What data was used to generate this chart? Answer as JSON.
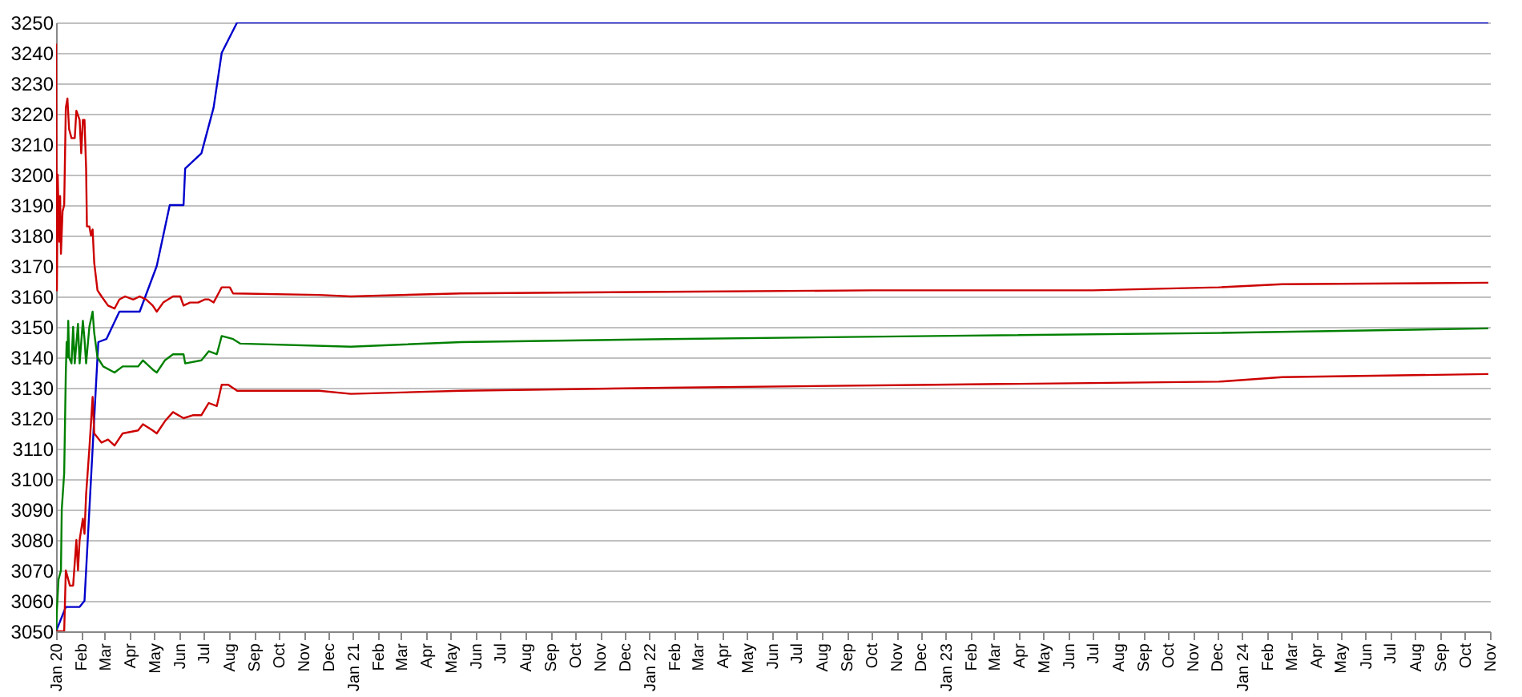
{
  "chart_data": {
    "type": "line",
    "xlim": [
      "2020-01-01",
      "2024-11-01"
    ],
    "xticks": [
      {
        "value": "2020-01",
        "label": "Jan 20"
      },
      {
        "value": "2020-02",
        "label": "Feb"
      },
      {
        "value": "2020-03",
        "label": "Mar"
      },
      {
        "value": "2020-04",
        "label": "Apr"
      },
      {
        "value": "2020-05",
        "label": "May"
      },
      {
        "value": "2020-06",
        "label": "Jun"
      },
      {
        "value": "2020-07",
        "label": "Jul"
      },
      {
        "value": "2020-08",
        "label": "Aug"
      },
      {
        "value": "2020-09",
        "label": "Sep"
      },
      {
        "value": "2020-10",
        "label": "Oct"
      },
      {
        "value": "2020-11",
        "label": "Nov"
      },
      {
        "value": "2020-12",
        "label": "Dec"
      },
      {
        "value": "2021-01",
        "label": "Jan 21"
      },
      {
        "value": "2021-02",
        "label": "Feb"
      },
      {
        "value": "2021-03",
        "label": "Mar"
      },
      {
        "value": "2021-04",
        "label": "Apr"
      },
      {
        "value": "2021-05",
        "label": "May"
      },
      {
        "value": "2021-06",
        "label": "Jun"
      },
      {
        "value": "2021-07",
        "label": "Jul"
      },
      {
        "value": "2021-08",
        "label": "Aug"
      },
      {
        "value": "2021-09",
        "label": "Sep"
      },
      {
        "value": "2021-10",
        "label": "Oct"
      },
      {
        "value": "2021-11",
        "label": "Nov"
      },
      {
        "value": "2021-12",
        "label": "Dec"
      },
      {
        "value": "2022-01",
        "label": "Jan 22"
      },
      {
        "value": "2022-02",
        "label": "Feb"
      },
      {
        "value": "2022-03",
        "label": "Mar"
      },
      {
        "value": "2022-04",
        "label": "Apr"
      },
      {
        "value": "2022-05",
        "label": "May"
      },
      {
        "value": "2022-06",
        "label": "Jun"
      },
      {
        "value": "2022-07",
        "label": "Jul"
      },
      {
        "value": "2022-08",
        "label": "Aug"
      },
      {
        "value": "2022-09",
        "label": "Sep"
      },
      {
        "value": "2022-10",
        "label": "Oct"
      },
      {
        "value": "2022-11",
        "label": "Nov"
      },
      {
        "value": "2022-12",
        "label": "Dec"
      },
      {
        "value": "2023-01",
        "label": "Jan 23"
      },
      {
        "value": "2023-02",
        "label": "Feb"
      },
      {
        "value": "2023-03",
        "label": "Mar"
      },
      {
        "value": "2023-04",
        "label": "Apr"
      },
      {
        "value": "2023-05",
        "label": "May"
      },
      {
        "value": "2023-06",
        "label": "Jun"
      },
      {
        "value": "2023-07",
        "label": "Jul"
      },
      {
        "value": "2023-08",
        "label": "Aug"
      },
      {
        "value": "2023-09",
        "label": "Sep"
      },
      {
        "value": "2023-10",
        "label": "Oct"
      },
      {
        "value": "2023-11",
        "label": "Nov"
      },
      {
        "value": "2023-12",
        "label": "Dec"
      },
      {
        "value": "2024-01",
        "label": "Jan 24"
      },
      {
        "value": "2024-02",
        "label": "Feb"
      },
      {
        "value": "2024-03",
        "label": "Mar"
      },
      {
        "value": "2024-04",
        "label": "Apr"
      },
      {
        "value": "2024-05",
        "label": "May"
      },
      {
        "value": "2024-06",
        "label": "Jun"
      },
      {
        "value": "2024-07",
        "label": "Jul"
      },
      {
        "value": "2024-08",
        "label": "Aug"
      },
      {
        "value": "2024-09",
        "label": "Sep"
      },
      {
        "value": "2024-10",
        "label": "Oct"
      },
      {
        "value": "2024-11",
        "label": "Nov"
      }
    ],
    "ylim": [
      3050,
      3250
    ],
    "yticks": [
      3050,
      3060,
      3070,
      3080,
      3090,
      3100,
      3110,
      3120,
      3130,
      3140,
      3150,
      3160,
      3170,
      3180,
      3190,
      3200,
      3210,
      3220,
      3230,
      3240,
      3250
    ],
    "grid": "y",
    "series": [
      {
        "color": "#0000cc",
        "x": [
          "2020-01-01",
          "2020-01-13",
          "2020-01-30",
          "2020-02-05",
          "2020-02-22",
          "2020-03-03",
          "2020-03-19",
          "2020-04-13",
          "2020-05-04",
          "2020-05-20",
          "2020-06-06",
          "2020-06-08",
          "2020-06-28",
          "2020-07-13",
          "2020-07-23",
          "2020-08-11",
          "2024-10-30"
        ],
        "values": [
          3050,
          3058,
          3058,
          3060,
          3145,
          3146,
          3155,
          3155,
          3170,
          3190,
          3190,
          3202,
          3207,
          3222,
          3240,
          3250,
          3250
        ]
      },
      {
        "color": "#cc0000",
        "x": [
          "2020-01-01",
          "2020-01-02",
          "2020-01-03",
          "2020-01-05",
          "2020-01-06",
          "2020-01-07",
          "2020-01-09",
          "2020-01-11",
          "2020-01-13",
          "2020-01-15",
          "2020-01-17",
          "2020-01-20",
          "2020-01-24",
          "2020-01-26",
          "2020-01-30",
          "2020-02-01",
          "2020-02-03",
          "2020-02-05",
          "2020-02-07",
          "2020-02-08",
          "2020-02-11",
          "2020-02-13",
          "2020-02-15",
          "2020-02-17",
          "2020-02-21",
          "2020-02-26",
          "2020-03-05",
          "2020-03-13",
          "2020-03-19",
          "2020-03-26",
          "2020-04-05",
          "2020-04-13",
          "2020-04-21",
          "2020-04-29",
          "2020-05-04",
          "2020-05-12",
          "2020-05-24",
          "2020-06-02",
          "2020-06-06",
          "2020-06-14",
          "2020-06-24",
          "2020-07-02",
          "2020-07-07",
          "2020-07-13",
          "2020-07-19",
          "2020-07-23",
          "2020-08-02",
          "2020-08-06",
          "2020-11-20",
          "2020-12-29",
          "2021-05-14",
          "2022-01-22",
          "2022-10-02",
          "2023-07-01",
          "2023-12-03",
          "2024-02-19",
          "2024-10-30"
        ],
        "values": [
          3243,
          3162,
          3200,
          3178,
          3193,
          3174,
          3188,
          3190,
          3222,
          3225,
          3215,
          3212,
          3212,
          3221,
          3218,
          3207,
          3218,
          3218,
          3202,
          3183,
          3183,
          3180,
          3182,
          3171,
          3162,
          3160,
          3157,
          3156,
          3159,
          3160,
          3159,
          3160,
          3159,
          3157,
          3155,
          3158,
          3160,
          3160,
          3157,
          3158,
          3158,
          3159,
          3159,
          3158,
          3161,
          3163,
          3163,
          3161,
          3160.5,
          3160,
          3161,
          3161.5,
          3162,
          3162,
          3163,
          3164,
          3164.5
        ]
      },
      {
        "color": "#008000",
        "x": [
          "2020-01-01",
          "2020-01-02",
          "2020-01-04",
          "2020-01-07",
          "2020-01-08",
          "2020-01-11",
          "2020-01-13",
          "2020-01-14",
          "2020-01-15",
          "2020-01-16",
          "2020-01-17",
          "2020-01-20",
          "2020-01-22",
          "2020-01-24",
          "2020-01-28",
          "2020-01-30",
          "2020-02-03",
          "2020-02-05",
          "2020-02-07",
          "2020-02-11",
          "2020-02-15",
          "2020-02-17",
          "2020-02-21",
          "2020-02-28",
          "2020-03-13",
          "2020-03-23",
          "2020-04-11",
          "2020-04-17",
          "2020-04-29",
          "2020-05-04",
          "2020-05-14",
          "2020-05-24",
          "2020-06-06",
          "2020-06-08",
          "2020-06-28",
          "2020-07-07",
          "2020-07-17",
          "2020-07-23",
          "2020-08-06",
          "2020-08-15",
          "2020-12-29",
          "2021-05-14",
          "2022-01-22",
          "2022-12-18",
          "2023-12-03",
          "2024-10-30"
        ],
        "values": [
          3050,
          3057,
          3067,
          3070,
          3090,
          3102,
          3135,
          3145,
          3140,
          3152,
          3140,
          3138,
          3150,
          3138,
          3151,
          3138,
          3152,
          3146,
          3138,
          3150,
          3155,
          3148,
          3140,
          3137,
          3135,
          3137,
          3137,
          3139,
          3136,
          3135,
          3139,
          3141,
          3141,
          3138,
          3139,
          3142,
          3141,
          3147,
          3146,
          3144.5,
          3143.5,
          3145,
          3146,
          3147,
          3148,
          3149.5
        ]
      },
      {
        "color": "#cc0000",
        "x": [
          "2020-01-01",
          "2020-01-11",
          "2020-01-13",
          "2020-01-15",
          "2020-01-18",
          "2020-01-22",
          "2020-01-26",
          "2020-01-28",
          "2020-01-30",
          "2020-02-03",
          "2020-02-05",
          "2020-02-07",
          "2020-02-11",
          "2020-02-15",
          "2020-02-17",
          "2020-02-26",
          "2020-03-05",
          "2020-03-13",
          "2020-03-23",
          "2020-04-11",
          "2020-04-17",
          "2020-04-29",
          "2020-05-04",
          "2020-05-14",
          "2020-05-24",
          "2020-06-06",
          "2020-06-18",
          "2020-06-28",
          "2020-07-07",
          "2020-07-17",
          "2020-07-23",
          "2020-07-31",
          "2020-08-11",
          "2020-11-20",
          "2020-12-29",
          "2021-05-14",
          "2022-01-22",
          "2022-12-18",
          "2023-12-03",
          "2024-02-19",
          "2024-10-30"
        ],
        "values": [
          3050,
          3050,
          3070,
          3068,
          3065,
          3065,
          3080,
          3070,
          3080,
          3087,
          3082,
          3095,
          3110,
          3127,
          3115,
          3112,
          3113,
          3111,
          3115,
          3116,
          3118,
          3116,
          3115,
          3119,
          3122,
          3120,
          3121,
          3121,
          3125,
          3124,
          3131,
          3131,
          3129,
          3129,
          3128,
          3129,
          3130,
          3131,
          3132,
          3133.5,
          3134.5
        ]
      }
    ]
  }
}
